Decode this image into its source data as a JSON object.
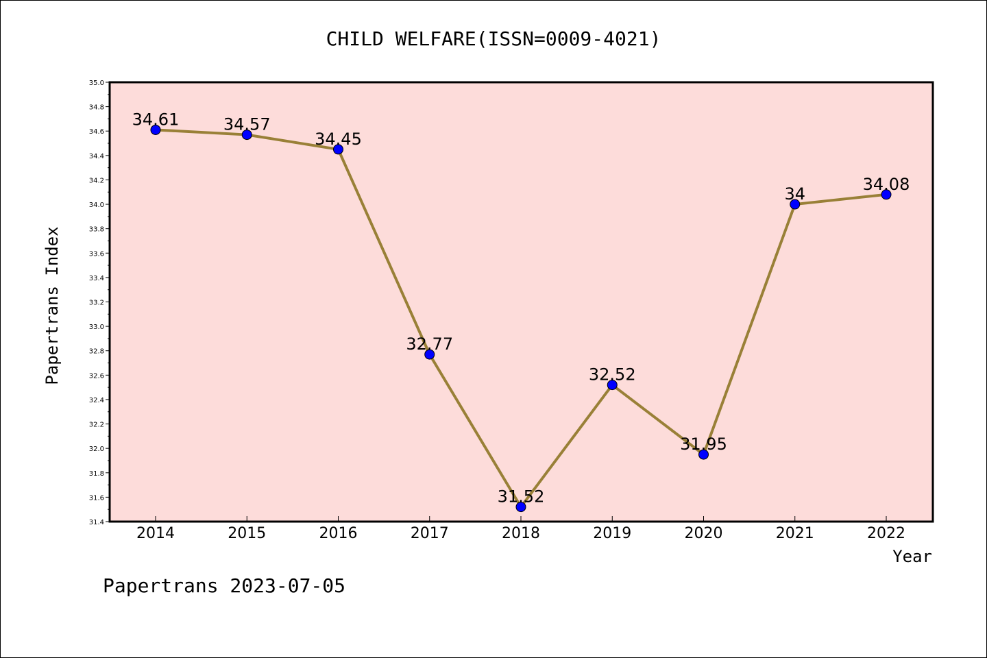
{
  "chart_data": {
    "type": "line",
    "title": "CHILD WELFARE(ISSN=0009-4021)",
    "xlabel": "Year",
    "ylabel": "Papertrans Index",
    "categories": [
      "2014",
      "2015",
      "2016",
      "2017",
      "2018",
      "2019",
      "2020",
      "2021",
      "2022"
    ],
    "values": [
      34.61,
      34.57,
      34.45,
      32.77,
      31.52,
      32.52,
      31.95,
      34,
      34.08
    ],
    "data_labels": [
      "34.61",
      "34.57",
      "34.45",
      "32.77",
      "31.52",
      "32.52",
      "31.95",
      "34",
      "34.08"
    ],
    "ylim": [
      31.4,
      35.0
    ],
    "yticks": [
      "31.4",
      "31.6",
      "31.8",
      "32.0",
      "32.2",
      "32.4",
      "32.6",
      "32.8",
      "33.0",
      "33.2",
      "33.4",
      "33.6",
      "33.8",
      "34.0",
      "34.2",
      "34.4",
      "34.6",
      "34.8",
      "35.0"
    ],
    "grid": false,
    "legend": "none",
    "colors": {
      "plot_background": "#fddcda",
      "line": "#998037",
      "marker": "#0000ff"
    }
  },
  "footer": "Papertrans 2023-07-05"
}
